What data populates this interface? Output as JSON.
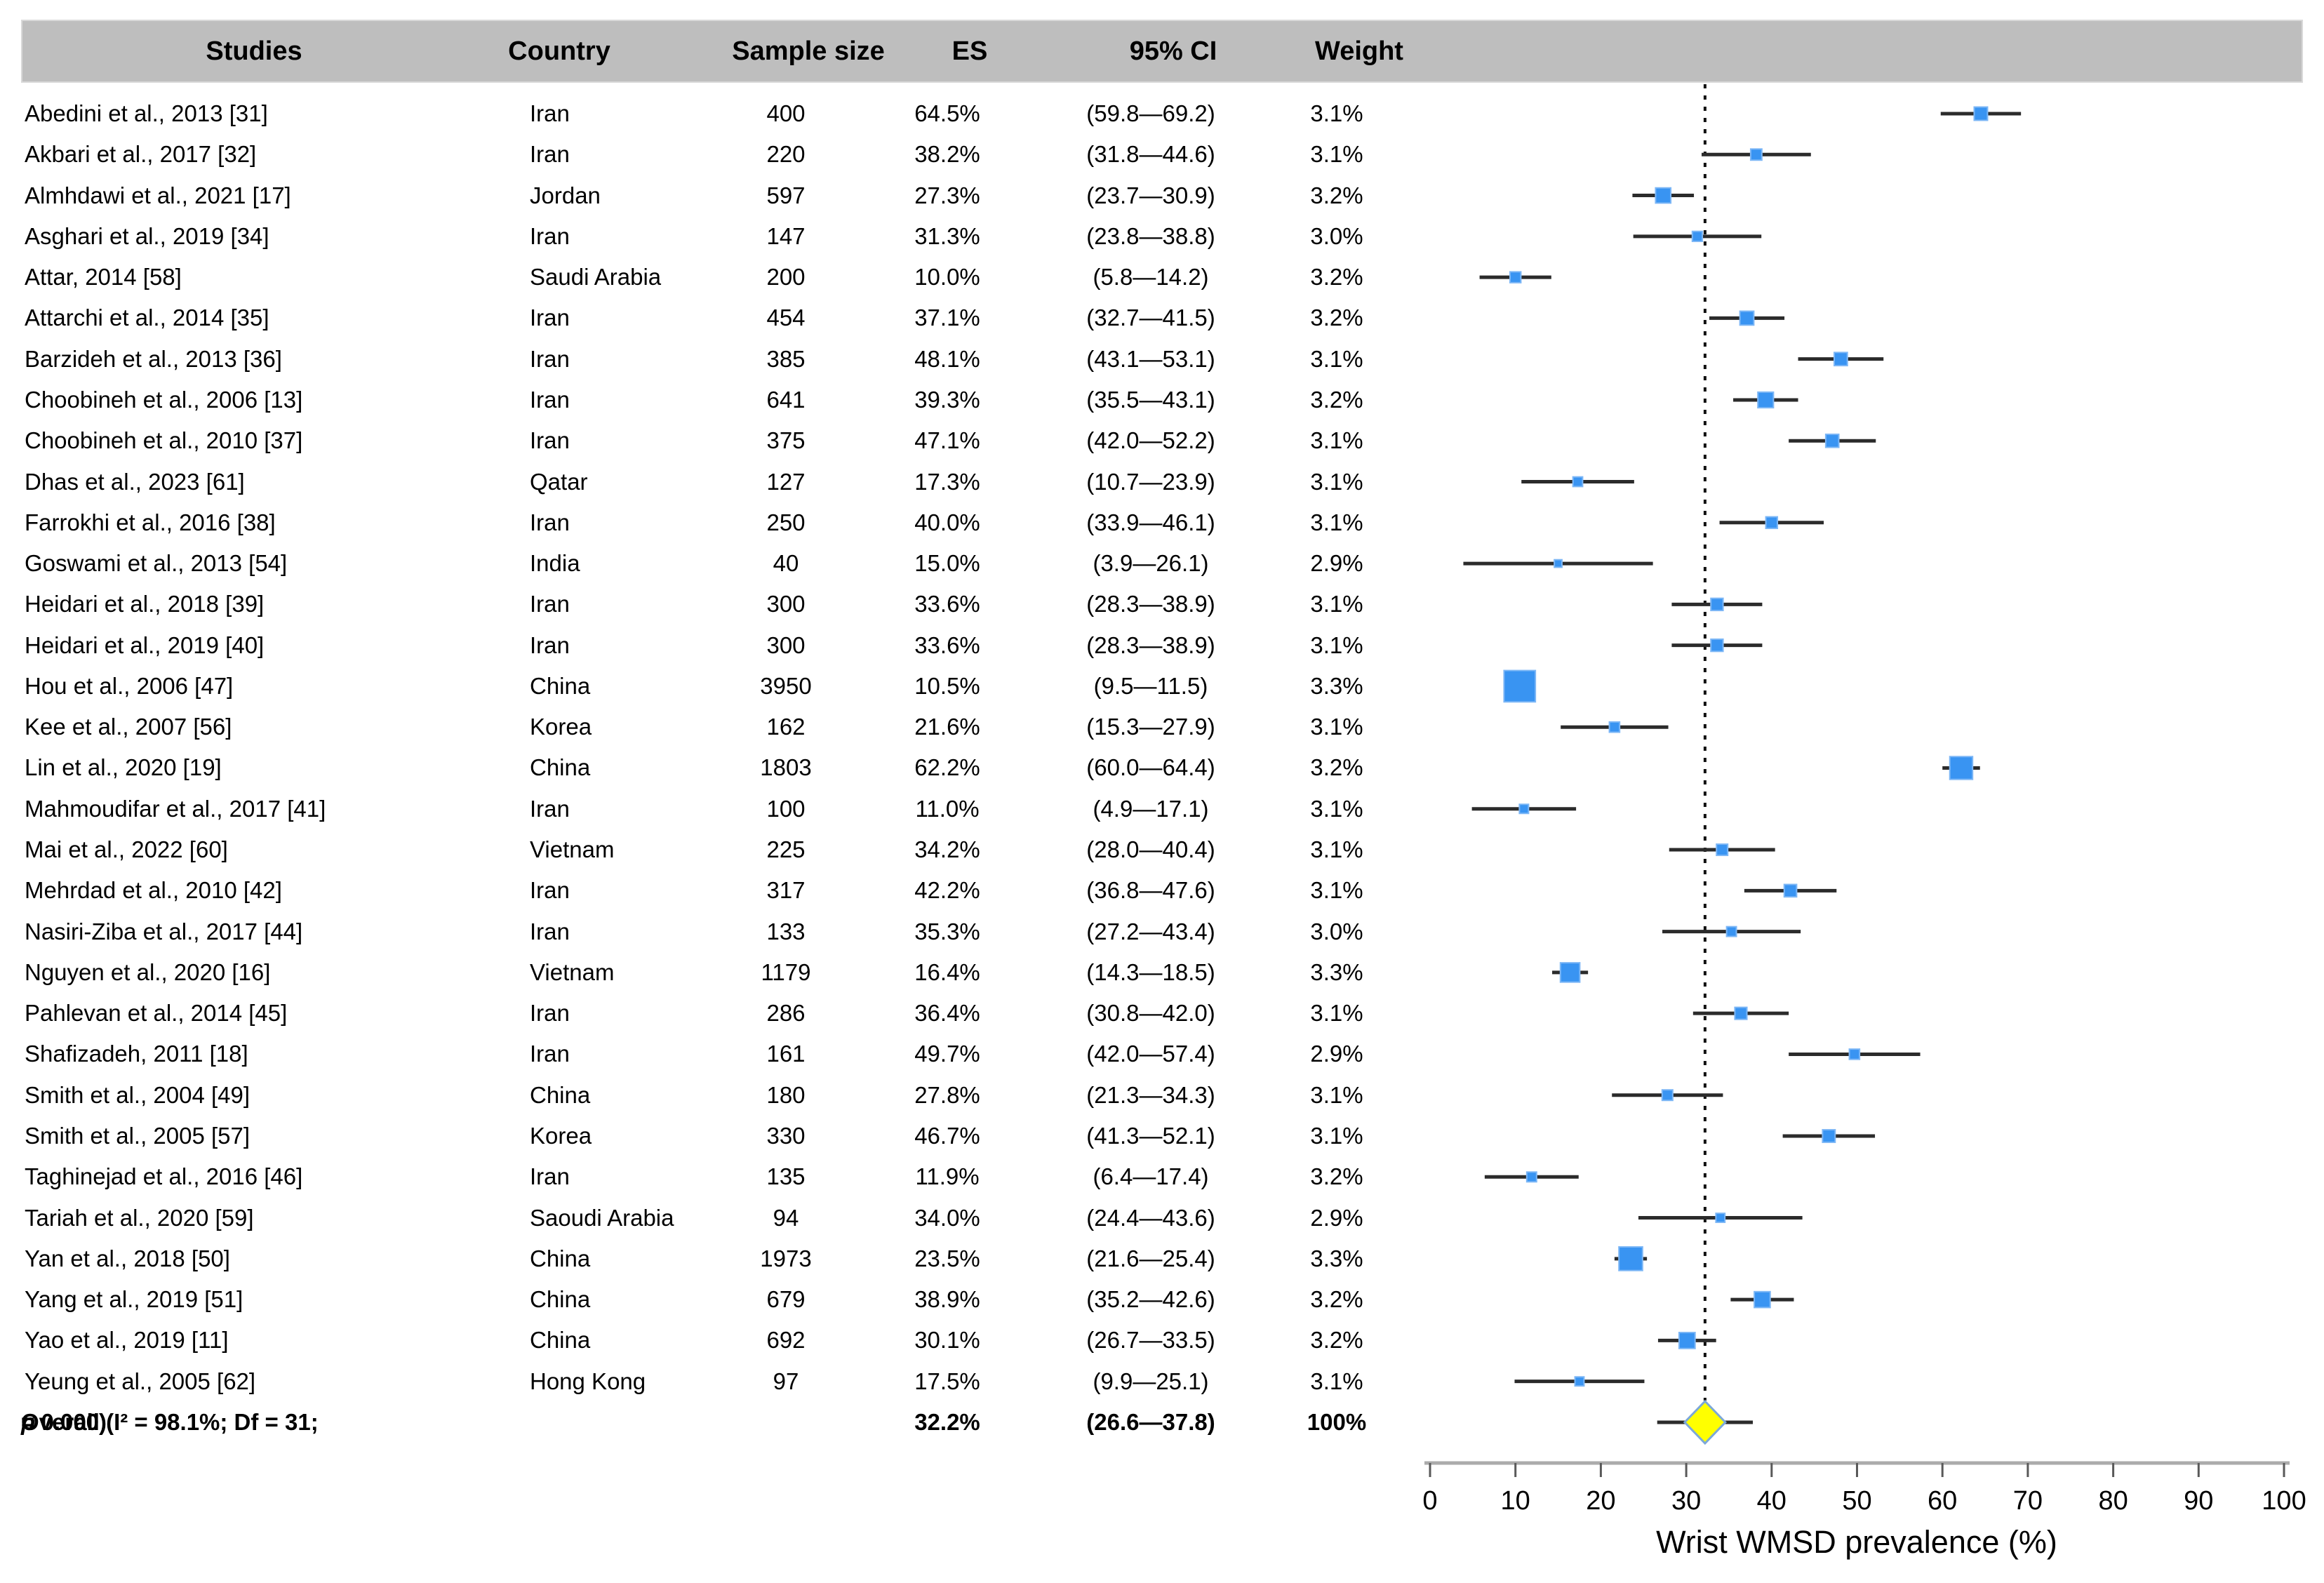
{
  "table": {
    "columns": [
      "Studies",
      "Country",
      "Sample size",
      "ES",
      "95% CI",
      "Weight"
    ]
  },
  "chart_data": {
    "type": "forest",
    "xlabel": "Wrist WMSD prevalence (%)",
    "xlim": [
      0,
      100
    ],
    "xticks": [
      0,
      10,
      20,
      30,
      40,
      50,
      60,
      70,
      80,
      90,
      100
    ],
    "grid": false,
    "studies": [
      {
        "study": "Abedini et al., 2013 [31]",
        "country": "Iran",
        "sample_size": 400,
        "es": 64.5,
        "ci_low": 59.8,
        "ci_high": 69.2,
        "es_label": "64.5%",
        "ci_label": "(59.8—69.2)",
        "weight": "3.1%"
      },
      {
        "study": "Akbari et al., 2017 [32]",
        "country": "Iran",
        "sample_size": 220,
        "es": 38.2,
        "ci_low": 31.8,
        "ci_high": 44.6,
        "es_label": "38.2%",
        "ci_label": "(31.8—44.6)",
        "weight": "3.1%"
      },
      {
        "study": "Almhdawi et al., 2021 [17]",
        "country": "Jordan",
        "sample_size": 597,
        "es": 27.3,
        "ci_low": 23.7,
        "ci_high": 30.9,
        "es_label": "27.3%",
        "ci_label": "(23.7—30.9)",
        "weight": "3.2%"
      },
      {
        "study": "Asghari et al., 2019 [34]",
        "country": "Iran",
        "sample_size": 147,
        "es": 31.3,
        "ci_low": 23.8,
        "ci_high": 38.8,
        "es_label": "31.3%",
        "ci_label": "(23.8—38.8)",
        "weight": "3.0%"
      },
      {
        "study": "Attar, 2014 [58]",
        "country": "Saudi Arabia",
        "sample_size": 200,
        "es": 10.0,
        "ci_low": 5.8,
        "ci_high": 14.2,
        "es_label": "10.0%",
        "ci_label": "(5.8—14.2)",
        "weight": "3.2%"
      },
      {
        "study": "Attarchi et al., 2014 [35]",
        "country": "Iran",
        "sample_size": 454,
        "es": 37.1,
        "ci_low": 32.7,
        "ci_high": 41.5,
        "es_label": "37.1%",
        "ci_label": "(32.7—41.5)",
        "weight": "3.2%"
      },
      {
        "study": "Barzideh et al., 2013 [36]",
        "country": "Iran",
        "sample_size": 385,
        "es": 48.1,
        "ci_low": 43.1,
        "ci_high": 53.1,
        "es_label": "48.1%",
        "ci_label": "(43.1—53.1)",
        "weight": "3.1%"
      },
      {
        "study": "Choobineh et al., 2006 [13]",
        "country": "Iran",
        "sample_size": 641,
        "es": 39.3,
        "ci_low": 35.5,
        "ci_high": 43.1,
        "es_label": "39.3%",
        "ci_label": "(35.5—43.1)",
        "weight": "3.2%"
      },
      {
        "study": "Choobineh et al., 2010 [37]",
        "country": "Iran",
        "sample_size": 375,
        "es": 47.1,
        "ci_low": 42.0,
        "ci_high": 52.2,
        "es_label": "47.1%",
        "ci_label": "(42.0—52.2)",
        "weight": "3.1%"
      },
      {
        "study": "Dhas et al., 2023 [61]",
        "country": "Qatar",
        "sample_size": 127,
        "es": 17.3,
        "ci_low": 10.7,
        "ci_high": 23.9,
        "es_label": "17.3%",
        "ci_label": "(10.7—23.9)",
        "weight": "3.1%"
      },
      {
        "study": "Farrokhi et al., 2016 [38]",
        "country": "Iran",
        "sample_size": 250,
        "es": 40.0,
        "ci_low": 33.9,
        "ci_high": 46.1,
        "es_label": "40.0%",
        "ci_label": "(33.9—46.1)",
        "weight": "3.1%"
      },
      {
        "study": "Goswami et al., 2013 [54]",
        "country": "India",
        "sample_size": 40,
        "es": 15.0,
        "ci_low": 3.9,
        "ci_high": 26.1,
        "es_label": "15.0%",
        "ci_label": "(3.9—26.1)",
        "weight": "2.9%"
      },
      {
        "study": "Heidari et al., 2018 [39]",
        "country": "Iran",
        "sample_size": 300,
        "es": 33.6,
        "ci_low": 28.3,
        "ci_high": 38.9,
        "es_label": "33.6%",
        "ci_label": "(28.3—38.9)",
        "weight": "3.1%"
      },
      {
        "study": "Heidari et al., 2019 [40]",
        "country": "Iran",
        "sample_size": 300,
        "es": 33.6,
        "ci_low": 28.3,
        "ci_high": 38.9,
        "es_label": "33.6%",
        "ci_label": "(28.3—38.9)",
        "weight": "3.1%"
      },
      {
        "study": "Hou et al., 2006 [47]",
        "country": "China",
        "sample_size": 3950,
        "es": 10.5,
        "ci_low": 9.5,
        "ci_high": 11.5,
        "es_label": "10.5%",
        "ci_label": "(9.5—11.5)",
        "weight": "3.3%"
      },
      {
        "study": "Kee et al., 2007 [56]",
        "country": "Korea",
        "sample_size": 162,
        "es": 21.6,
        "ci_low": 15.3,
        "ci_high": 27.9,
        "es_label": "21.6%",
        "ci_label": "(15.3—27.9)",
        "weight": "3.1%"
      },
      {
        "study": "Lin et al., 2020 [19]",
        "country": "China",
        "sample_size": 1803,
        "es": 62.2,
        "ci_low": 60.0,
        "ci_high": 64.4,
        "es_label": "62.2%",
        "ci_label": "(60.0—64.4)",
        "weight": "3.2%"
      },
      {
        "study": "Mahmoudifar et al., 2017 [41]",
        "country": "Iran",
        "sample_size": 100,
        "es": 11.0,
        "ci_low": 4.9,
        "ci_high": 17.1,
        "es_label": "11.0%",
        "ci_label": "(4.9—17.1)",
        "weight": "3.1%"
      },
      {
        "study": "Mai et al., 2022 [60]",
        "country": "Vietnam",
        "sample_size": 225,
        "es": 34.2,
        "ci_low": 28.0,
        "ci_high": 40.4,
        "es_label": "34.2%",
        "ci_label": "(28.0—40.4)",
        "weight": "3.1%"
      },
      {
        "study": "Mehrdad et al., 2010 [42]",
        "country": "Iran",
        "sample_size": 317,
        "es": 42.2,
        "ci_low": 36.8,
        "ci_high": 47.6,
        "es_label": "42.2%",
        "ci_label": "(36.8—47.6)",
        "weight": "3.1%"
      },
      {
        "study": "Nasiri-Ziba et al., 2017 [44]",
        "country": "Iran",
        "sample_size": 133,
        "es": 35.3,
        "ci_low": 27.2,
        "ci_high": 43.4,
        "es_label": "35.3%",
        "ci_label": "(27.2—43.4)",
        "weight": "3.0%"
      },
      {
        "study": "Nguyen et al., 2020 [16]",
        "country": "Vietnam",
        "sample_size": 1179,
        "es": 16.4,
        "ci_low": 14.3,
        "ci_high": 18.5,
        "es_label": "16.4%",
        "ci_label": "(14.3—18.5)",
        "weight": "3.3%"
      },
      {
        "study": "Pahlevan et al., 2014 [45]",
        "country": "Iran",
        "sample_size": 286,
        "es": 36.4,
        "ci_low": 30.8,
        "ci_high": 42.0,
        "es_label": "36.4%",
        "ci_label": "(30.8—42.0)",
        "weight": "3.1%"
      },
      {
        "study": "Shafizadeh, 2011 [18]",
        "country": "Iran",
        "sample_size": 161,
        "es": 49.7,
        "ci_low": 42.0,
        "ci_high": 57.4,
        "es_label": "49.7%",
        "ci_label": "(42.0—57.4)",
        "weight": "2.9%"
      },
      {
        "study": "Smith et al., 2004 [49]",
        "country": "China",
        "sample_size": 180,
        "es": 27.8,
        "ci_low": 21.3,
        "ci_high": 34.3,
        "es_label": "27.8%",
        "ci_label": "(21.3—34.3)",
        "weight": "3.1%"
      },
      {
        "study": "Smith et al., 2005 [57]",
        "country": "Korea",
        "sample_size": 330,
        "es": 46.7,
        "ci_low": 41.3,
        "ci_high": 52.1,
        "es_label": "46.7%",
        "ci_label": "(41.3—52.1)",
        "weight": "3.1%"
      },
      {
        "study": "Taghinejad et al., 2016 [46]",
        "country": "Iran",
        "sample_size": 135,
        "es": 11.9,
        "ci_low": 6.4,
        "ci_high": 17.4,
        "es_label": "11.9%",
        "ci_label": "(6.4—17.4)",
        "weight": "3.2%"
      },
      {
        "study": "Tariah et al., 2020 [59]",
        "country": "Saoudi Arabia",
        "sample_size": 94,
        "es": 34.0,
        "ci_low": 24.4,
        "ci_high": 43.6,
        "es_label": "34.0%",
        "ci_label": "(24.4—43.6)",
        "weight": "2.9%"
      },
      {
        "study": "Yan et al., 2018 [50]",
        "country": "China",
        "sample_size": 1973,
        "es": 23.5,
        "ci_low": 21.6,
        "ci_high": 25.4,
        "es_label": "23.5%",
        "ci_label": "(21.6—25.4)",
        "weight": "3.3%"
      },
      {
        "study": "Yang et al., 2019 [51]",
        "country": "China",
        "sample_size": 679,
        "es": 38.9,
        "ci_low": 35.2,
        "ci_high": 42.6,
        "es_label": "38.9%",
        "ci_label": "(35.2—42.6)",
        "weight": "3.2%"
      },
      {
        "study": "Yao et al., 2019 [11]",
        "country": "China",
        "sample_size": 692,
        "es": 30.1,
        "ci_low": 26.7,
        "ci_high": 33.5,
        "es_label": "30.1%",
        "ci_label": "(26.7—33.5)",
        "weight": "3.2%"
      },
      {
        "study": "Yeung et al., 2005 [62]",
        "country": "Hong Kong",
        "sample_size": 97,
        "es": 17.5,
        "ci_low": 9.9,
        "ci_high": 25.1,
        "es_label": "17.5%",
        "ci_label": "(9.9—25.1)",
        "weight": "3.1%"
      }
    ],
    "overall": {
      "label_pre": "Overall (I² = 98.1%; Df = 31; ",
      "label_p": "p",
      "label_post": " = 0.000)",
      "es": 32.2,
      "ci_low": 26.6,
      "ci_high": 37.8,
      "es_label": "32.2%",
      "ci_label": "(26.6—37.8)",
      "weight": "100%"
    },
    "colors": {
      "header_bg": "#BEBEBE",
      "marker": "#3994F2",
      "marker_border": "#7DB7F6",
      "ci_line": "#2B2B2B",
      "reference_line": "#111111",
      "diamond_fill": "#FFFF00",
      "diamond_border": "#7CA8D8",
      "axis_line": "#ABABAB",
      "tick": "#595959"
    }
  }
}
